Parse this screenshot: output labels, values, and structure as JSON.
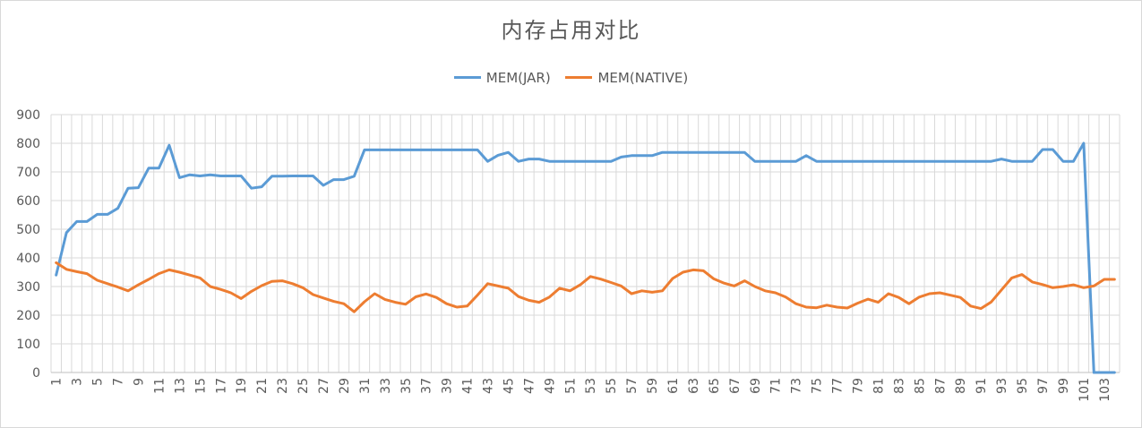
{
  "chart_data": {
    "type": "line",
    "title": "内存占用对比",
    "xlabel": "",
    "ylabel": "",
    "ylim": [
      0,
      900
    ],
    "yticks": [
      0,
      100,
      200,
      300,
      400,
      500,
      600,
      700,
      800,
      900
    ],
    "x": [
      1,
      2,
      3,
      4,
      5,
      6,
      7,
      8,
      9,
      10,
      11,
      12,
      13,
      14,
      15,
      16,
      17,
      18,
      19,
      20,
      21,
      22,
      23,
      24,
      25,
      26,
      27,
      28,
      29,
      30,
      31,
      32,
      33,
      34,
      35,
      36,
      37,
      38,
      39,
      40,
      41,
      42,
      43,
      44,
      45,
      46,
      47,
      48,
      49,
      50,
      51,
      52,
      53,
      54,
      55,
      56,
      57,
      58,
      59,
      60,
      61,
      62,
      63,
      64,
      65,
      66,
      67,
      68,
      69,
      70,
      71,
      72,
      73,
      74,
      75,
      76,
      77,
      78,
      79,
      80,
      81,
      82,
      83,
      84,
      85,
      86,
      87,
      88,
      89,
      90,
      91,
      92,
      93,
      94,
      95,
      96,
      97,
      98,
      99,
      100,
      101,
      102,
      103,
      104
    ],
    "xtick_labels": [
      "1",
      "3",
      "5",
      "7",
      "9",
      "11",
      "13",
      "15",
      "17",
      "19",
      "21",
      "23",
      "25",
      "27",
      "29",
      "31",
      "33",
      "35",
      "37",
      "39",
      "41",
      "43",
      "45",
      "47",
      "49",
      "51",
      "53",
      "55",
      "57",
      "59",
      "61",
      "63",
      "65",
      "67",
      "69",
      "71",
      "73",
      "75",
      "77",
      "79",
      "81",
      "83",
      "85",
      "87",
      "89",
      "91",
      "93",
      "95",
      "97",
      "99",
      "101",
      "103"
    ],
    "grid": true,
    "legend_position": "top",
    "series": [
      {
        "name": "MEM(JAR)",
        "color": "#5b9bd5",
        "values": [
          340,
          488,
          527,
          527,
          552,
          552,
          573,
          643,
          645,
          713,
          713,
          793,
          680,
          690,
          686,
          690,
          686,
          686,
          686,
          643,
          648,
          685,
          685,
          686,
          686,
          686,
          653,
          673,
          673,
          685,
          777,
          777,
          777,
          777,
          777,
          777,
          777,
          777,
          777,
          777,
          777,
          777,
          737,
          758,
          768,
          737,
          745,
          745,
          737,
          737,
          737,
          737,
          737,
          737,
          737,
          752,
          757,
          757,
          757,
          768,
          768,
          768,
          768,
          768,
          768,
          768,
          768,
          768,
          737,
          737,
          737,
          737,
          737,
          757,
          737,
          737,
          737,
          737,
          737,
          737,
          737,
          737,
          737,
          737,
          737,
          737,
          737,
          737,
          737,
          737,
          737,
          737,
          745,
          737,
          737,
          737,
          778,
          778,
          737,
          737,
          800,
          0,
          0,
          0
        ]
      },
      {
        "name": "MEM(NATIVE)",
        "color": "#ed7d31",
        "values": [
          383,
          360,
          352,
          345,
          322,
          310,
          298,
          285,
          306,
          325,
          345,
          358,
          350,
          340,
          330,
          300,
          290,
          278,
          258,
          283,
          303,
          318,
          320,
          310,
          296,
          272,
          260,
          248,
          240,
          212,
          247,
          275,
          255,
          245,
          238,
          264,
          274,
          262,
          240,
          228,
          232,
          270,
          310,
          302,
          294,
          265,
          252,
          245,
          263,
          294,
          285,
          306,
          335,
          326,
          314,
          302,
          275,
          285,
          280,
          285,
          328,
          350,
          358,
          355,
          327,
          312,
          302,
          320,
          300,
          285,
          278,
          263,
          240,
          228,
          226,
          235,
          228,
          225,
          242,
          256,
          245,
          275,
          262,
          240,
          263,
          275,
          278,
          270,
          262,
          232,
          223,
          246,
          288,
          330,
          342,
          316,
          307,
          296,
          300,
          306,
          296,
          302,
          325,
          325
        ]
      }
    ]
  }
}
